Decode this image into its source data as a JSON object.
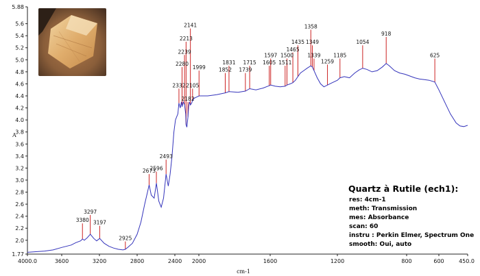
{
  "chart_data": {
    "type": "line",
    "xlabel": "cm-1",
    "ylabel": "A",
    "xlim": [
      4000.0,
      450.0
    ],
    "ylim": [
      1.77,
      5.88
    ],
    "x_ticks": [
      "4000.0",
      "3600",
      "3200",
      "2800",
      "2400",
      "2000",
      "1600",
      "1200",
      "800",
      "600",
      "450.0"
    ],
    "y_ticks": [
      "1.77",
      "2.0",
      "2.2",
      "2.4",
      "2.6",
      "2.8",
      "3.0",
      "3.2",
      "3.4",
      "3.6",
      "3.8",
      "4.0",
      "4.2",
      "4.4",
      "4.6",
      "4.8",
      "5.0",
      "5.2",
      "5.4",
      "5.6",
      "5.88"
    ],
    "series_color": "#3333bb",
    "peak_line_color": "#cc2222",
    "spectrum": [
      [
        4000,
        1.8
      ],
      [
        3900,
        1.81
      ],
      [
        3800,
        1.82
      ],
      [
        3700,
        1.84
      ],
      [
        3600,
        1.88
      ],
      [
        3500,
        1.92
      ],
      [
        3450,
        1.96
      ],
      [
        3400,
        1.99
      ],
      [
        3380,
        2.02
      ],
      [
        3360,
        2.0
      ],
      [
        3330,
        2.04
      ],
      [
        3297,
        2.1
      ],
      [
        3260,
        2.03
      ],
      [
        3230,
        1.99
      ],
      [
        3197,
        2.03
      ],
      [
        3150,
        1.95
      ],
      [
        3100,
        1.9
      ],
      [
        3050,
        1.87
      ],
      [
        3000,
        1.85
      ],
      [
        2950,
        1.84
      ],
      [
        2925,
        1.85
      ],
      [
        2900,
        1.88
      ],
      [
        2850,
        1.95
      ],
      [
        2800,
        2.1
      ],
      [
        2760,
        2.3
      ],
      [
        2720,
        2.6
      ],
      [
        2690,
        2.8
      ],
      [
        2673,
        2.92
      ],
      [
        2650,
        2.75
      ],
      [
        2620,
        2.7
      ],
      [
        2596,
        2.95
      ],
      [
        2570,
        2.65
      ],
      [
        2545,
        2.55
      ],
      [
        2520,
        2.7
      ],
      [
        2493,
        3.1
      ],
      [
        2470,
        2.9
      ],
      [
        2450,
        3.1
      ],
      [
        2430,
        3.4
      ],
      [
        2410,
        3.8
      ],
      [
        2390,
        4.0
      ],
      [
        2370,
        4.05
      ],
      [
        2350,
        4.1
      ],
      [
        2332,
        4.28
      ],
      [
        2310,
        4.2
      ],
      [
        2290,
        4.3
      ],
      [
        2280,
        4.22
      ],
      [
        2260,
        4.3
      ],
      [
        2239,
        4.25
      ],
      [
        2220,
        4.1
      ],
      [
        2213,
        3.92
      ],
      [
        2200,
        3.88
      ],
      [
        2182,
        4.05
      ],
      [
        2170,
        4.22
      ],
      [
        2155,
        4.3
      ],
      [
        2141,
        4.25
      ],
      [
        2120,
        4.28
      ],
      [
        2105,
        4.32
      ],
      [
        2080,
        4.36
      ],
      [
        2040,
        4.38
      ],
      [
        1999,
        4.4
      ],
      [
        1950,
        4.4
      ],
      [
        1900,
        4.42
      ],
      [
        1852,
        4.45
      ],
      [
        1831,
        4.47
      ],
      [
        1780,
        4.46
      ],
      [
        1739,
        4.48
      ],
      [
        1715,
        4.52
      ],
      [
        1680,
        4.5
      ],
      [
        1640,
        4.53
      ],
      [
        1605,
        4.57
      ],
      [
        1597,
        4.58
      ],
      [
        1570,
        4.56
      ],
      [
        1540,
        4.55
      ],
      [
        1511,
        4.56
      ],
      [
        1500,
        4.58
      ],
      [
        1480,
        4.6
      ],
      [
        1465,
        4.62
      ],
      [
        1450,
        4.66
      ],
      [
        1435,
        4.72
      ],
      [
        1420,
        4.78
      ],
      [
        1400,
        4.82
      ],
      [
        1380,
        4.86
      ],
      [
        1358,
        4.9
      ],
      [
        1349,
        4.88
      ],
      [
        1339,
        4.82
      ],
      [
        1320,
        4.7
      ],
      [
        1300,
        4.6
      ],
      [
        1280,
        4.55
      ],
      [
        1259,
        4.58
      ],
      [
        1230,
        4.62
      ],
      [
        1200,
        4.66
      ],
      [
        1185,
        4.7
      ],
      [
        1160,
        4.72
      ],
      [
        1130,
        4.7
      ],
      [
        1100,
        4.78
      ],
      [
        1075,
        4.83
      ],
      [
        1054,
        4.86
      ],
      [
        1030,
        4.84
      ],
      [
        1000,
        4.8
      ],
      [
        970,
        4.82
      ],
      [
        940,
        4.88
      ],
      [
        918,
        4.94
      ],
      [
        900,
        4.9
      ],
      [
        870,
        4.82
      ],
      [
        840,
        4.78
      ],
      [
        810,
        4.76
      ],
      [
        780,
        4.73
      ],
      [
        750,
        4.7
      ],
      [
        720,
        4.68
      ],
      [
        690,
        4.67
      ],
      [
        660,
        4.66
      ],
      [
        625,
        4.63
      ],
      [
        600,
        4.5
      ],
      [
        570,
        4.3
      ],
      [
        540,
        4.1
      ],
      [
        510,
        3.95
      ],
      [
        490,
        3.9
      ],
      [
        470,
        3.89
      ],
      [
        450,
        3.91
      ]
    ],
    "peaks": [
      {
        "label": "3380",
        "x": 3380,
        "y_top": 2.28
      },
      {
        "label": "3297",
        "x": 3297,
        "y_top": 2.42
      },
      {
        "label": "3197",
        "x": 3197,
        "y_top": 2.24
      },
      {
        "label": "2925",
        "x": 2925,
        "y_top": 1.98
      },
      {
        "label": "2673",
        "x": 2673,
        "y_top": 3.1
      },
      {
        "label": "2596",
        "x": 2596,
        "y_top": 3.14
      },
      {
        "label": "2493",
        "x": 2493,
        "y_top": 3.34
      },
      {
        "label": "2332",
        "x": 2332,
        "y_top": 4.52
      },
      {
        "label": "2280",
        "x": 2280,
        "y_top": 4.88
      },
      {
        "label": "2239",
        "x": 2239,
        "y_top": 5.08
      },
      {
        "label": "2213",
        "x": 2213,
        "y_top": 5.3
      },
      {
        "label": "2182",
        "x": 2182,
        "y_top": 4.3
      },
      {
        "label": "2141",
        "x": 2141,
        "y_top": 5.52
      },
      {
        "label": "2105",
        "x": 2105,
        "y_top": 4.52
      },
      {
        "label": "1999",
        "x": 1999,
        "y_top": 4.82
      },
      {
        "label": "1852",
        "x": 1852,
        "y_top": 4.78
      },
      {
        "label": "1831",
        "x": 1831,
        "y_top": 4.9
      },
      {
        "label": "1739",
        "x": 1739,
        "y_top": 4.78
      },
      {
        "label": "1715",
        "x": 1715,
        "y_top": 4.9
      },
      {
        "label": "1605",
        "x": 1605,
        "y_top": 4.9
      },
      {
        "label": "1597",
        "x": 1597,
        "y_top": 5.02
      },
      {
        "label": "1511",
        "x": 1511,
        "y_top": 4.9
      },
      {
        "label": "1500",
        "x": 1500,
        "y_top": 5.02
      },
      {
        "label": "1465",
        "x": 1465,
        "y_top": 5.12
      },
      {
        "label": "1435",
        "x": 1435,
        "y_top": 5.24
      },
      {
        "label": "1358",
        "x": 1358,
        "y_top": 5.5
      },
      {
        "label": "1349",
        "x": 1349,
        "y_top": 5.24
      },
      {
        "label": "1339",
        "x": 1339,
        "y_top": 5.02
      },
      {
        "label": "1259",
        "x": 1259,
        "y_top": 4.92
      },
      {
        "label": "1185",
        "x": 1185,
        "y_top": 5.02
      },
      {
        "label": "1054",
        "x": 1054,
        "y_top": 5.24
      },
      {
        "label": "918",
        "x": 918,
        "y_top": 5.38
      },
      {
        "label": "625",
        "x": 625,
        "y_top": 5.02
      }
    ]
  },
  "info": {
    "title": "Quartz à Rutile (ech1):",
    "rows": [
      "res: 4cm-1",
      "meth: Transmission",
      "mes: Absorbance",
      "scan: 60",
      "instru : Perkin Elmer, Spectrum One",
      "smooth: Oui, auto"
    ]
  }
}
